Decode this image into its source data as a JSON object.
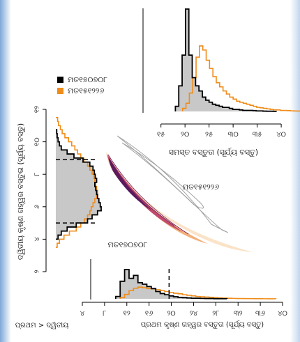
{
  "chart_data": {
    "type": "histogram",
    "legend": {
      "placement": "top-left",
      "entries": [
        {
          "name": "ମତ୧୭୦୭୦୮",
          "color": "#000000"
        },
        {
          "name": "ମତ୧୫୧୨୨୬",
          "color": "#f08c1a"
        }
      ]
    },
    "colors": {
      "black_series": "#000000",
      "orange_series": "#f08c1a",
      "fill_gray": "#c8c8c8",
      "contour_gray": "#a0a0a0"
    },
    "total_mass_panel": {
      "xlabel": "ସମସ୍ତ ବସ୍ତୁତା (ସୂର୍ଯ୍ୟ ବସ୍ତୁ)",
      "xticks": [
        "୧୫",
        "୨୦",
        "୨୫",
        "୩୦",
        "୩୫",
        "୪୦"
      ],
      "xtick_values": [
        15,
        20,
        25,
        30,
        35,
        40
      ],
      "xlim": [
        12,
        41
      ],
      "bin_width": 0.7,
      "black_hist": {
        "x0": 18.0,
        "heights": [
          0.05,
          0.25,
          0.55,
          1.0,
          0.55,
          0.33,
          0.25,
          0.2,
          0.14,
          0.11,
          0.09,
          0.07,
          0.06,
          0.05,
          0.04,
          0.04,
          0.03,
          0.02,
          0.02,
          0.015,
          0.01,
          0.01,
          0.01,
          0.008,
          0.005,
          0.005,
          0.003,
          0.002,
          0.002,
          0.001
        ]
      },
      "orange_hist": {
        "x0": 19.5,
        "heights": [
          0.03,
          0.08,
          0.18,
          0.33,
          0.53,
          0.64,
          0.6,
          0.5,
          0.42,
          0.34,
          0.28,
          0.24,
          0.2,
          0.17,
          0.14,
          0.12,
          0.1,
          0.09,
          0.08,
          0.07,
          0.06,
          0.05,
          0.04,
          0.035,
          0.03,
          0.025,
          0.02,
          0.015,
          0.015,
          0.01,
          0.01,
          0.008,
          0.006,
          0.005,
          0.004
        ]
      }
    },
    "primary_mass_panel": {
      "xlabel": "ପ୍ରଥମ କୃଷ୍ଣ ଗହ୍ୱର ବସ୍ତୁତା (ସୂର୍ଯ୍ୟ ବସ୍ତୁ)",
      "xticks": [
        "୪",
        "୮",
        "୧୨",
        "୧୬",
        "୨୦",
        "୨୪",
        "୨୮",
        "୩୨",
        "୩୬",
        "୪୦"
      ],
      "xtick_values": [
        4,
        8,
        12,
        16,
        20,
        24,
        28,
        32,
        36,
        40
      ],
      "xlim": [
        4,
        40
      ],
      "bin_width": 0.8,
      "dashed_line_x": 19.6,
      "black_hist": {
        "x0": 10.0,
        "heights": [
          0.08,
          0.6,
          1.0,
          0.7,
          0.8,
          0.55,
          0.5,
          0.42,
          0.35,
          0.25,
          0.18,
          0.14,
          0.1,
          0.07,
          0.05,
          0.04,
          0.03,
          0.02,
          0.02,
          0.015,
          0.01,
          0.01,
          0.005,
          0.005,
          0.003
        ]
      },
      "orange_hist": {
        "x0": 10.8,
        "heights": [
          0.04,
          0.15,
          0.28,
          0.36,
          0.4,
          0.38,
          0.35,
          0.34,
          0.31,
          0.28,
          0.25,
          0.22,
          0.19,
          0.17,
          0.14,
          0.12,
          0.1,
          0.08,
          0.07,
          0.06,
          0.05,
          0.04,
          0.03,
          0.025,
          0.02,
          0.015,
          0.01,
          0.01,
          0.008,
          0.006,
          0.005,
          0.004,
          0.003,
          0.002,
          0.001
        ]
      }
    },
    "secondary_mass_panel": {
      "ylabel": "ଦ୍ୱିତୀୟ କୃଷ୍ଣ ଗହ୍ୱର ବସ୍ତୁତା (ସୂର୍ଯ୍ୟ ବସ୍ତୁ)",
      "yticks": [
        "୨",
        "୪",
        "୬",
        "୮",
        "୧୦",
        "୧୨"
      ],
      "ytick_values": [
        2,
        4,
        6,
        8,
        10,
        12
      ],
      "ylim": [
        2,
        12
      ],
      "bin_width": 0.25,
      "dashed_lines_y": [
        5.0,
        8.9
      ],
      "black_hist": {
        "y0": 4.0,
        "heights": [
          0.05,
          0.12,
          0.25,
          0.45,
          0.7,
          0.8,
          0.92,
          1.0,
          0.98,
          0.95,
          0.92,
          0.9,
          0.88,
          0.86,
          0.9,
          0.87,
          0.85,
          0.82,
          0.75,
          0.6,
          0.4,
          0.25,
          0.12,
          0.08,
          0.05,
          0.03,
          0.02
        ]
      },
      "orange_hist": {
        "y0": 3.5,
        "heights": [
          0.03,
          0.08,
          0.18,
          0.3,
          0.45,
          0.55,
          0.63,
          0.7,
          0.75,
          0.78,
          0.82,
          0.86,
          0.9,
          0.92,
          0.9,
          0.88,
          0.86,
          0.84,
          0.8,
          0.75,
          0.7,
          0.62,
          0.55,
          0.48,
          0.42,
          0.35,
          0.28,
          0.2,
          0.14,
          0.1,
          0.06,
          0.04
        ]
      }
    },
    "joint_panel": {
      "annotations": [
        "ମତ୧୫୧୨୨୬",
        "ମତ୧୭୦୭୦୮"
      ],
      "corner_label": "ପ୍ରଥମ > ଦ୍ୱିତୀୟ",
      "contours_color": "#a0a0a0",
      "posterior_colors": [
        "#fbe3c8",
        "#f2b07a",
        "#c24a6e",
        "#5a1a5e"
      ]
    }
  }
}
